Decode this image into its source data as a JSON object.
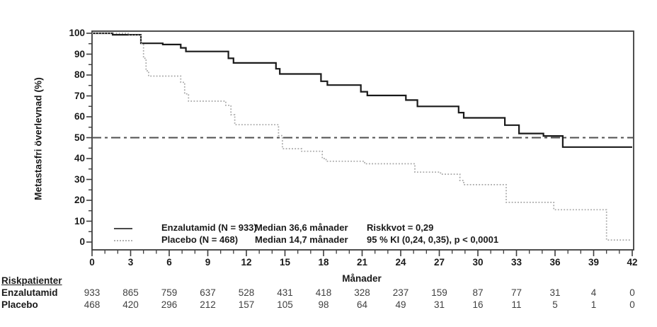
{
  "chart_data": {
    "type": "line",
    "subtype": "kaplan-meier-step",
    "xlabel": "Månader",
    "ylabel": "Metastasfri överlevnad (%)",
    "xlim": [
      0,
      42
    ],
    "ylim": [
      0,
      100
    ],
    "x_ticks": [
      0,
      3,
      6,
      9,
      12,
      15,
      18,
      21,
      24,
      27,
      30,
      33,
      36,
      39,
      42
    ],
    "x_minor_step": 1,
    "y_ticks": [
      0,
      10,
      20,
      30,
      40,
      50,
      60,
      70,
      80,
      90,
      100
    ],
    "y_minor_step": 5,
    "grid": false,
    "legend_position": "inside-bottom-left",
    "reference_line_y": 50,
    "series": [
      {
        "name": "Enzalutamid",
        "n": 933,
        "median_months": 36.6,
        "style": "solid",
        "color": "#1a1a1a",
        "steps": [
          [
            0,
            100
          ],
          [
            1.6,
            99.3
          ],
          [
            3.8,
            95.2
          ],
          [
            5.5,
            94.6
          ],
          [
            6.9,
            93.0
          ],
          [
            7.3,
            91.3
          ],
          [
            10.6,
            88.0
          ],
          [
            11.0,
            85.8
          ],
          [
            14.3,
            83.0
          ],
          [
            14.6,
            80.5
          ],
          [
            17.8,
            77.0
          ],
          [
            18.3,
            75.2
          ],
          [
            20.9,
            72.0
          ],
          [
            21.4,
            70.2
          ],
          [
            24.4,
            68.0
          ],
          [
            25.3,
            65.0
          ],
          [
            28.5,
            62.0
          ],
          [
            28.9,
            59.5
          ],
          [
            32.1,
            56.0
          ],
          [
            33.2,
            52.0
          ],
          [
            35.1,
            50.8
          ],
          [
            36.6,
            45.5
          ],
          [
            42,
            45.5
          ]
        ]
      },
      {
        "name": "Placebo",
        "n": 468,
        "median_months": 14.7,
        "style": "dotted",
        "color": "#a6a6a6",
        "steps": [
          [
            0,
            100
          ],
          [
            2.8,
            99.0
          ],
          [
            3.8,
            95.0
          ],
          [
            4.0,
            88.0
          ],
          [
            4.2,
            82.0
          ],
          [
            4.4,
            79.5
          ],
          [
            6.9,
            76.5
          ],
          [
            7.2,
            71.0
          ],
          [
            7.5,
            67.5
          ],
          [
            10.4,
            65.5
          ],
          [
            10.8,
            61.0
          ],
          [
            11.1,
            56.2
          ],
          [
            14.5,
            51.0
          ],
          [
            14.8,
            44.7
          ],
          [
            16.3,
            43.5
          ],
          [
            17.9,
            40.0
          ],
          [
            18.2,
            38.7
          ],
          [
            21.2,
            37.5
          ],
          [
            25.1,
            33.5
          ],
          [
            27.1,
            32.5
          ],
          [
            28.6,
            29.5
          ],
          [
            28.9,
            27.5
          ],
          [
            32.2,
            19.0
          ],
          [
            35.9,
            15.5
          ],
          [
            40.0,
            1.0
          ],
          [
            41.9,
            1.0
          ]
        ]
      }
    ]
  },
  "legend": {
    "rows": [
      {
        "label": "Enzalutamid (N = 933)",
        "median": "Median 36,6 månader",
        "stat": "Riskkvot = 0,29"
      },
      {
        "label": "Placebo (N = 468)",
        "median": "Median 14,7 månader",
        "stat": "95 % KI (0,24, 0,35), p < 0,0001"
      }
    ]
  },
  "risk_table": {
    "heading": "Riskpatienter",
    "rows": [
      {
        "label": "Enzalutamid",
        "values": [
          933,
          865,
          759,
          637,
          528,
          431,
          418,
          328,
          237,
          159,
          87,
          77,
          31,
          4,
          0
        ]
      },
      {
        "label": "Placebo",
        "values": [
          468,
          420,
          296,
          212,
          157,
          105,
          98,
          64,
          49,
          31,
          16,
          11,
          5,
          1,
          0
        ]
      }
    ]
  },
  "colors": {
    "axis": "#3c3c3c",
    "solid_curve": "#1a1a1a",
    "dotted_curve": "#a6a6a6",
    "reference_line": "#4f4f4f",
    "risk_numbers": "#414141"
  }
}
